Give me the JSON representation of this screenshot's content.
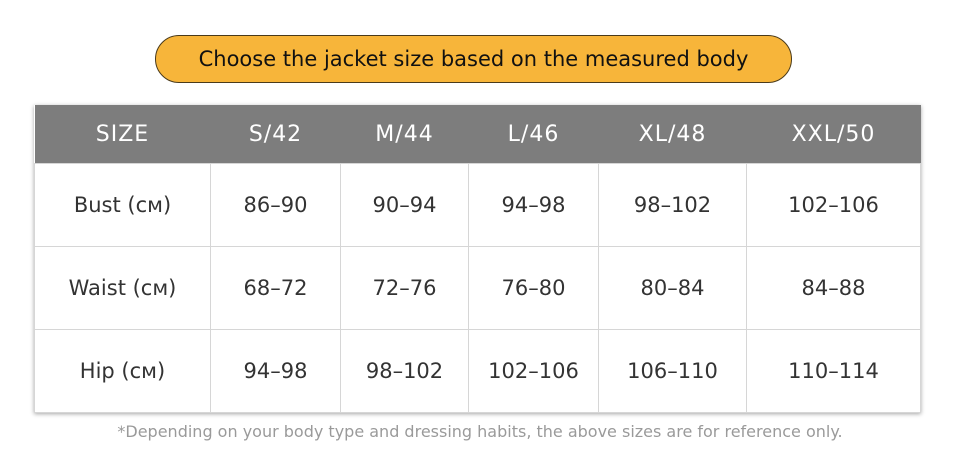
{
  "title": "Choose the jacket size based on the measured body",
  "table": {
    "headers": [
      "SIZE",
      "S/42",
      "M/44",
      "L/46",
      "XL/48",
      "XXL/50"
    ],
    "rows": [
      {
        "label": "Bust (см)",
        "values": [
          "86–90",
          "90–94",
          "94–98",
          "98–102",
          "102–106"
        ]
      },
      {
        "label": "Waist (см)",
        "values": [
          "68–72",
          "72–76",
          "76–80",
          "80–84",
          "84–88"
        ]
      },
      {
        "label": "Hip (см)",
        "values": [
          "94–98",
          "98–102",
          "102–106",
          "106–110",
          "110–114"
        ]
      }
    ]
  },
  "note": "*Depending on your body type and dressing habits, the above sizes are for reference only.",
  "colors": {
    "banner": "#f7b53a",
    "header": "#7d7d7d"
  }
}
